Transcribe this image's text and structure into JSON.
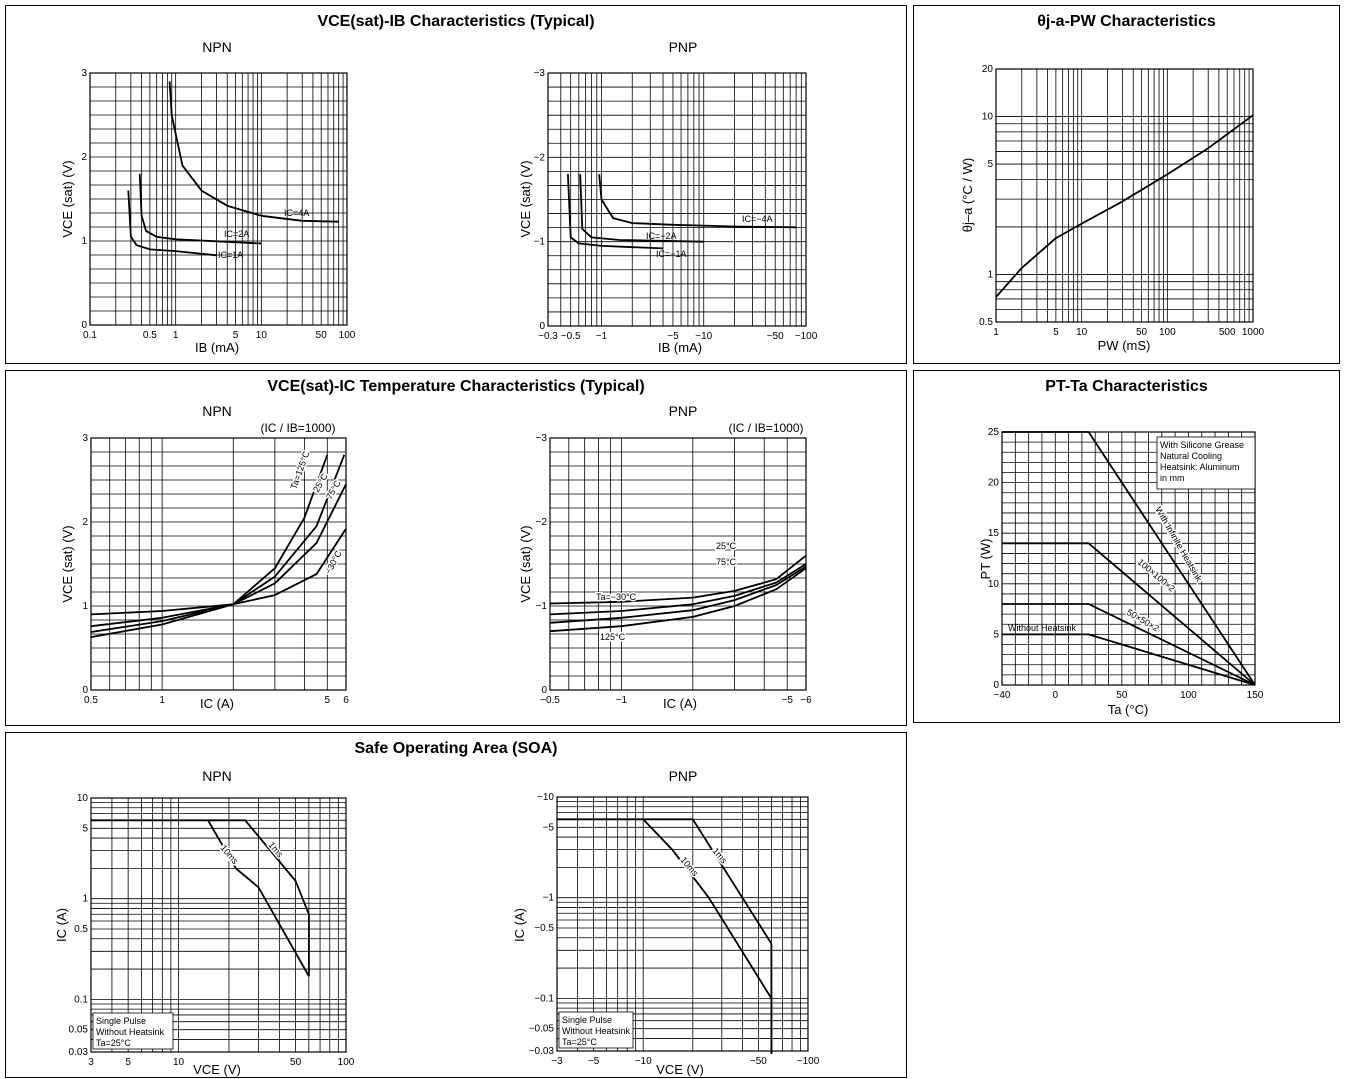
{
  "panels": {
    "p1": {
      "title": "VCE(sat)-IB Characteristics (Typical)"
    },
    "p2": {
      "title": "θj-a-PW Characteristics"
    },
    "p3": {
      "title": "VCE(sat)-IC Temperature Characteristics (Typical)"
    },
    "p4": {
      "title": "PT-Ta Characteristics"
    },
    "p5": {
      "title": "Safe Operating Area (SOA)"
    }
  },
  "chart_data": [
    {
      "id": "vce_ib_npn",
      "type": "line",
      "subtitle": "NPN",
      "xlabel": "IB  (mA)",
      "ylabel": "VCE  (sat) (V)",
      "xscale": "log",
      "xlim": [
        0.1,
        100
      ],
      "ylim": [
        0,
        3
      ],
      "xticks": [
        0.1,
        0.5,
        1,
        5,
        10,
        50,
        100
      ],
      "xticklabels": [
        "0.1",
        "0.5",
        "1",
        "5",
        "10",
        "50",
        "100"
      ],
      "yticks": [
        0,
        1,
        2,
        3
      ],
      "yticklabels": [
        "0",
        "1",
        "2",
        "3"
      ],
      "series": [
        {
          "name": "IC=1A",
          "x": [
            0.28,
            0.3,
            0.35,
            0.5,
            1,
            3
          ],
          "y": [
            1.6,
            1.05,
            0.95,
            0.9,
            0.88,
            0.83
          ]
        },
        {
          "name": "IC=2A",
          "x": [
            0.38,
            0.4,
            0.45,
            0.6,
            1,
            10
          ],
          "y": [
            1.8,
            1.3,
            1.12,
            1.05,
            1.02,
            0.97
          ]
        },
        {
          "name": "IC=4A",
          "x": [
            0.85,
            0.9,
            1.2,
            2,
            4,
            10,
            30,
            80
          ],
          "y": [
            2.9,
            2.5,
            1.9,
            1.6,
            1.42,
            1.3,
            1.24,
            1.23
          ]
        }
      ]
    },
    {
      "id": "vce_ib_pnp",
      "type": "line",
      "subtitle": "PNP",
      "xlabel": "IB  (mA)",
      "ylabel": "VCE  (sat) (V)",
      "xscale": "log",
      "xlim": [
        -0.3,
        -100
      ],
      "ylim": [
        0,
        -3
      ],
      "xticks": [
        -0.3,
        -0.5,
        -1,
        -5,
        -10,
        -50,
        -100
      ],
      "xticklabels": [
        "−0.3",
        "−0.5",
        "−1",
        "−5",
        "−10",
        "−50",
        "−100"
      ],
      "yticks": [
        0,
        -1,
        -2,
        -3
      ],
      "yticklabels": [
        "0",
        "−1",
        "−2",
        "−3"
      ],
      "series": [
        {
          "name": "IC=−1A",
          "x": [
            -0.47,
            -0.5,
            -0.6,
            -1,
            -4
          ],
          "y": [
            -1.8,
            -1.05,
            -0.98,
            -0.95,
            -0.92
          ]
        },
        {
          "name": "IC=−2A",
          "x": [
            -0.62,
            -0.65,
            -0.8,
            -1.5,
            -10
          ],
          "y": [
            -1.8,
            -1.15,
            -1.05,
            -1.02,
            -1.0
          ]
        },
        {
          "name": "IC=−4A",
          "x": [
            -0.95,
            -1,
            -1.3,
            -2,
            -5,
            -20,
            -80
          ],
          "y": [
            -1.8,
            -1.5,
            -1.28,
            -1.22,
            -1.2,
            -1.18,
            -1.17
          ]
        }
      ]
    },
    {
      "id": "theta_pw",
      "type": "line",
      "xlabel": "PW  (mS)",
      "ylabel": "θj–a  (°C / W)",
      "xscale": "log",
      "yscale": "log",
      "xlim": [
        1,
        1000
      ],
      "ylim": [
        0.5,
        20
      ],
      "xticks": [
        1,
        5,
        10,
        50,
        100,
        500,
        1000
      ],
      "xticklabels": [
        "1",
        "5",
        "10",
        "50",
        "100",
        "500",
        "1000"
      ],
      "yticks": [
        0.5,
        1,
        5,
        10,
        20
      ],
      "yticklabels": [
        "0.5",
        "1",
        "5",
        "10",
        "20"
      ],
      "series": [
        {
          "x": [
            1,
            2,
            5,
            10,
            30,
            100,
            300,
            1000
          ],
          "y": [
            0.72,
            1.1,
            1.7,
            2.1,
            2.9,
            4.3,
            6.3,
            10.2
          ]
        }
      ]
    },
    {
      "id": "vce_ic_npn",
      "type": "line",
      "subtitle": "NPN",
      "annotation": "(IC / IB=1000)",
      "xlabel": "IC  (A)",
      "ylabel": "VCE  (sat) (V)",
      "xscale": "log",
      "xlim": [
        0.5,
        6
      ],
      "ylim": [
        0,
        3
      ],
      "xticks": [
        0.5,
        1,
        5,
        6
      ],
      "xticklabels": [
        "0.5",
        "1",
        "5",
        "6"
      ],
      "yticks": [
        0,
        1,
        2,
        3
      ],
      "yticklabels": [
        "0",
        "1",
        "2",
        "3"
      ],
      "series": [
        {
          "name": "Ta=125°C",
          "x": [
            0.5,
            1,
            2,
            3,
            4,
            5
          ],
          "y": [
            0.63,
            0.78,
            1.02,
            1.45,
            2.05,
            2.8
          ]
        },
        {
          "name": "25°C",
          "x": [
            0.5,
            1,
            2,
            3,
            4.5,
            5.9
          ],
          "y": [
            0.69,
            0.82,
            1.02,
            1.35,
            1.95,
            2.8
          ]
        },
        {
          "name": "75°C",
          "x": [
            0.5,
            1,
            2,
            3,
            4.5,
            6
          ],
          "y": [
            0.76,
            0.86,
            1.02,
            1.27,
            1.75,
            2.45
          ]
        },
        {
          "name": "−30°C",
          "x": [
            0.5,
            1,
            2,
            3,
            4.5,
            6
          ],
          "y": [
            0.9,
            0.94,
            1.02,
            1.13,
            1.38,
            1.92
          ]
        }
      ]
    },
    {
      "id": "vce_ic_pnp",
      "type": "line",
      "subtitle": "PNP",
      "annotation": "(IC / IB=1000)",
      "xlabel": "IC  (A)",
      "ylabel": "VCE  (sat) (V)",
      "xscale": "log",
      "xlim": [
        -0.5,
        -6
      ],
      "ylim": [
        0,
        -3
      ],
      "xticks": [
        -0.5,
        -1,
        -5,
        -6
      ],
      "xticklabels": [
        "−0.5",
        "−1",
        "−5",
        "−6"
      ],
      "yticks": [
        0,
        -1,
        -2,
        -3
      ],
      "yticklabels": [
        "0",
        "−1",
        "−2",
        "−3"
      ],
      "labels": [
        "Ta=−30°C",
        "25°C",
        "75°C",
        "125°C"
      ],
      "series": [
        {
          "x": [
            -0.5,
            -1,
            -2,
            -3,
            -4.5,
            -6
          ],
          "y": [
            -1.03,
            -1.05,
            -1.1,
            -1.18,
            -1.32,
            -1.6
          ]
        },
        {
          "x": [
            -0.5,
            -1,
            -2,
            -3,
            -4.5,
            -6
          ],
          "y": [
            -0.9,
            -0.94,
            -1.02,
            -1.12,
            -1.28,
            -1.5
          ]
        },
        {
          "x": [
            -0.5,
            -1,
            -2,
            -3,
            -4.5,
            -6
          ],
          "y": [
            -0.8,
            -0.86,
            -0.95,
            -1.07,
            -1.25,
            -1.47
          ]
        },
        {
          "x": [
            -0.5,
            -1,
            -2,
            -3,
            -4.5,
            -6
          ],
          "y": [
            -0.7,
            -0.76,
            -0.87,
            -1.0,
            -1.2,
            -1.45
          ]
        }
      ]
    },
    {
      "id": "pt_ta",
      "type": "line",
      "xlabel": "Ta  (°C)",
      "ylabel": "PT  (W)",
      "xlim": [
        -40,
        150
      ],
      "ylim": [
        0,
        25
      ],
      "xticks": [
        -40,
        0,
        50,
        100,
        150
      ],
      "xticklabels": [
        "−40",
        "0",
        "50",
        "100",
        "150"
      ],
      "yticks": [
        0,
        5,
        10,
        15,
        20,
        25
      ],
      "yticklabels": [
        "0",
        "5",
        "10",
        "15",
        "20",
        "25"
      ],
      "legend_box": [
        "With Silicone Grease",
        "Natural Cooling",
        "Heatsink: Aluminum",
        "in mm"
      ],
      "series": [
        {
          "name": "With Infinite Heatsink",
          "x": [
            -40,
            25,
            150
          ],
          "y": [
            25,
            25,
            0
          ]
        },
        {
          "name": "100×100×2",
          "x": [
            -40,
            25,
            150
          ],
          "y": [
            14,
            14,
            0
          ]
        },
        {
          "name": "50×50×2",
          "x": [
            -40,
            25,
            150
          ],
          "y": [
            8,
            8,
            0
          ]
        },
        {
          "name": "Without Heatsink",
          "x": [
            -40,
            25,
            150
          ],
          "y": [
            5,
            5,
            0
          ]
        }
      ]
    },
    {
      "id": "soa_npn",
      "type": "line",
      "subtitle": "NPN",
      "xlabel": "VCE  (V)",
      "ylabel": "IC  (A)",
      "xscale": "log",
      "yscale": "log",
      "xlim": [
        3,
        100
      ],
      "ylim": [
        0.03,
        10
      ],
      "xticks": [
        3,
        5,
        10,
        50,
        100
      ],
      "xticklabels": [
        "3",
        "5",
        "10",
        "50",
        "100"
      ],
      "yticks": [
        0.03,
        0.05,
        0.1,
        0.5,
        1,
        5,
        10
      ],
      "yticklabels": [
        "0.03",
        "0.05",
        "0.1",
        "0.5",
        "1",
        "5",
        "10"
      ],
      "legend_box": [
        "Single Pulse",
        "Without Heatsink",
        "Ta=25°C"
      ],
      "series": [
        {
          "name": "1ms",
          "x": [
            3,
            25,
            50,
            60,
            60
          ],
          "y": [
            6,
            6,
            1.5,
            0.7,
            0.17
          ]
        },
        {
          "name": "10ms",
          "x": [
            15,
            22,
            30,
            60,
            60
          ],
          "y": [
            6,
            2,
            1.3,
            0.17,
            0.17
          ]
        }
      ]
    },
    {
      "id": "soa_pnp",
      "type": "line",
      "subtitle": "PNP",
      "xlabel": "VCE  (V)",
      "ylabel": "IC  (A)",
      "xscale": "log",
      "yscale": "log",
      "xlim": [
        -3,
        -100
      ],
      "ylim": [
        -0.03,
        -10
      ],
      "xticks": [
        -3,
        -5,
        -10,
        -50,
        -100
      ],
      "xticklabels": [
        "−3",
        "−5",
        "−10",
        "−50",
        "−100"
      ],
      "yticks": [
        -0.03,
        -0.05,
        -0.1,
        -0.5,
        -1,
        -5,
        -10
      ],
      "yticklabels": [
        "−0.03",
        "−0.05",
        "−0.1",
        "−0.5",
        "−1",
        "−5",
        "−10"
      ],
      "legend_box": [
        "Single Pulse",
        "Without Heatsink",
        "Ta=25°C"
      ],
      "series": [
        {
          "name": "1ms",
          "x": [
            -3,
            -20,
            -60,
            -60
          ],
          "y": [
            -6,
            -6,
            -0.35,
            -0.028
          ]
        },
        {
          "name": "10ms",
          "x": [
            -10,
            -15,
            -25,
            -60,
            -60
          ],
          "y": [
            -6,
            -3,
            -1,
            -0.1,
            -0.028
          ]
        }
      ]
    }
  ]
}
